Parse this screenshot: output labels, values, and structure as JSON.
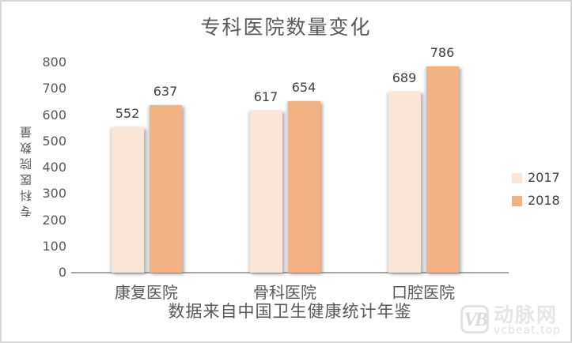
{
  "chart": {
    "title": "专科医院数量变化",
    "y_axis_title": "专科医院数量",
    "x_axis_title": "数据来自中国卫生健康统计年鉴"
  },
  "chart_data": {
    "type": "bar",
    "title": "专科医院数量变化",
    "categories": [
      "康复医院",
      "骨科医院",
      "口腔医院"
    ],
    "series": [
      {
        "name": "2017",
        "color": "#FBE5D6",
        "values": [
          552,
          617,
          689
        ]
      },
      {
        "name": "2018",
        "color": "#F4B183",
        "values": [
          637,
          654,
          786
        ]
      }
    ],
    "xlabel": "数据来自中国卫生健康统计年鉴",
    "ylabel": "专科医院数量",
    "ylim": [
      0,
      800
    ],
    "ytick_step": 100,
    "grid": false,
    "data_labels": true,
    "legend_position": "right",
    "colors": {
      "series_2017": "#FBE5D6",
      "series_2018": "#F4B183",
      "axis_line": "#A6A6A6",
      "text": "#595959",
      "label_text": "#404040"
    }
  },
  "watermark": {
    "logo": "VB",
    "name": "动脉网",
    "url": "vcbeat.top"
  }
}
